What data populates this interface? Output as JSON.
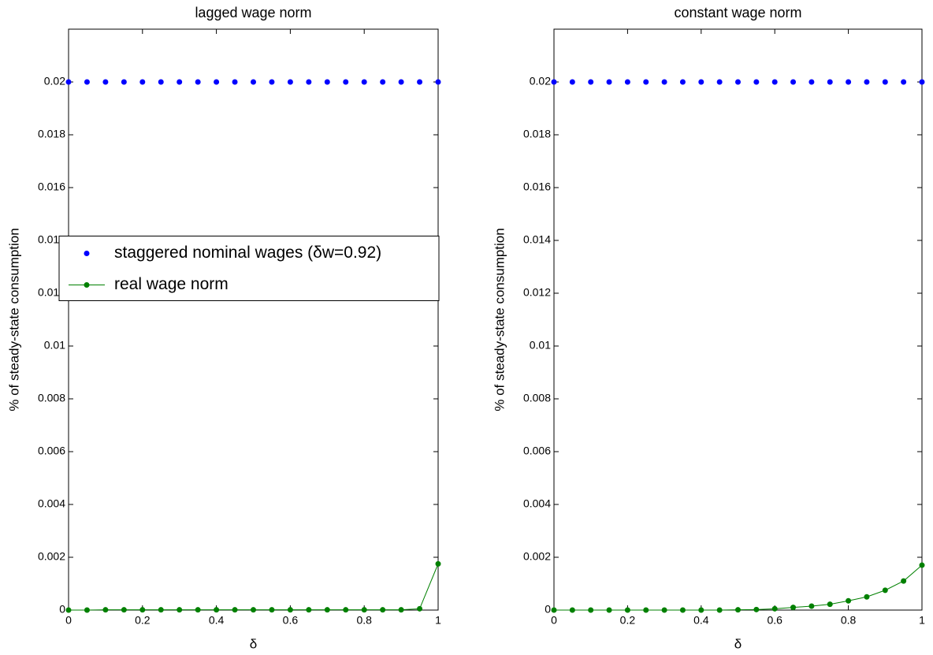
{
  "chart_data": [
    {
      "type": "line",
      "title": "lagged wage norm",
      "xlabel": "δ",
      "ylabel": "% of steady-state consumption",
      "x": [
        0,
        0.05,
        0.1,
        0.15,
        0.2,
        0.25,
        0.3,
        0.35,
        0.4,
        0.45,
        0.5,
        0.55,
        0.6,
        0.65,
        0.7,
        0.75,
        0.8,
        0.85,
        0.9,
        0.95,
        1
      ],
      "series": [
        {
          "name": "staggered nominal wages (δw=0.92)",
          "color": "#0000ff",
          "line": false,
          "values": [
            0.02,
            0.02,
            0.02,
            0.02,
            0.02,
            0.02,
            0.02,
            0.02,
            0.02,
            0.02,
            0.02,
            0.02,
            0.02,
            0.02,
            0.02,
            0.02,
            0.02,
            0.02,
            0.02,
            0.02,
            0.02
          ]
        },
        {
          "name": "real wage norm",
          "color": "#008000",
          "line": true,
          "values": [
            0,
            0,
            1e-05,
            1e-05,
            1e-05,
            1e-05,
            1e-05,
            1e-05,
            1e-05,
            1e-05,
            1e-05,
            1e-05,
            1e-05,
            1e-05,
            1e-05,
            1e-05,
            1e-05,
            1e-05,
            1e-05,
            5e-05,
            0.00175
          ]
        }
      ],
      "xlim": [
        0,
        1
      ],
      "xticks": [
        0,
        0.2,
        0.4,
        0.6,
        0.8,
        1
      ],
      "ylim": [
        0,
        0.022
      ],
      "yticks": [
        0,
        0.002,
        0.004,
        0.006,
        0.008,
        0.01,
        0.012,
        0.014,
        0.016,
        0.018,
        0.02
      ],
      "legend": "center left"
    },
    {
      "type": "line",
      "title": "constant wage norm",
      "xlabel": "δ",
      "ylabel": "% of steady-state consumption",
      "x": [
        0,
        0.05,
        0.1,
        0.15,
        0.2,
        0.25,
        0.3,
        0.35,
        0.4,
        0.45,
        0.5,
        0.55,
        0.6,
        0.65,
        0.7,
        0.75,
        0.8,
        0.85,
        0.9,
        0.95,
        1
      ],
      "series": [
        {
          "name": "staggered nominal wages (δw=0.92)",
          "color": "#0000ff",
          "line": false,
          "values": [
            0.02,
            0.02,
            0.02,
            0.02,
            0.02,
            0.02,
            0.02,
            0.02,
            0.02,
            0.02,
            0.02,
            0.02,
            0.02,
            0.02,
            0.02,
            0.02,
            0.02,
            0.02,
            0.02,
            0.02,
            0.02
          ]
        },
        {
          "name": "real wage norm",
          "color": "#008000",
          "line": true,
          "values": [
            0,
            0,
            0,
            0,
            0,
            0,
            0,
            0,
            0,
            0,
            1e-05,
            2e-05,
            5e-05,
            0.0001,
            0.00015,
            0.00022,
            0.00035,
            0.0005,
            0.00075,
            0.0011,
            0.0017
          ]
        }
      ],
      "xlim": [
        0,
        1
      ],
      "xticks": [
        0,
        0.2,
        0.4,
        0.6,
        0.8,
        1
      ],
      "ylim": [
        0,
        0.022
      ],
      "yticks": [
        0,
        0.002,
        0.004,
        0.006,
        0.008,
        0.01,
        0.012,
        0.014,
        0.016,
        0.018,
        0.02
      ]
    }
  ]
}
